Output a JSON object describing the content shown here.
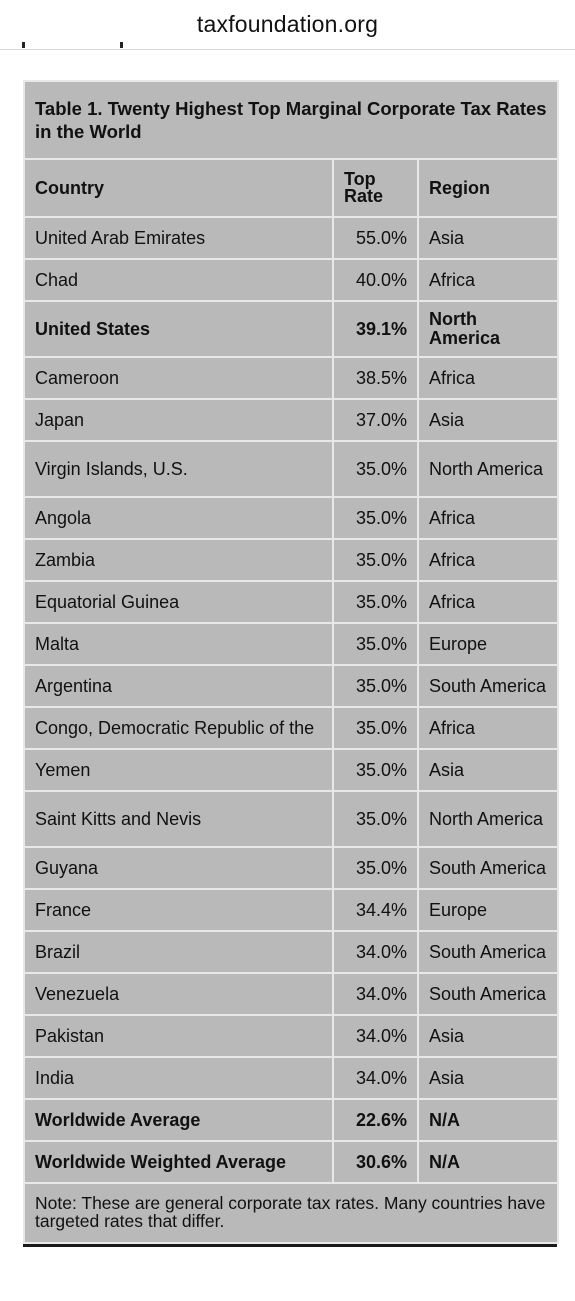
{
  "header": {
    "url": "taxfoundation.org"
  },
  "table": {
    "title": "Table 1. Twenty Highest Top Marginal Corporate Tax Rates in the World",
    "columns": [
      "Country",
      "Top Rate",
      "Region"
    ],
    "rows": [
      {
        "country": "United Arab Emirates",
        "rate": "55.0%",
        "region": "Asia",
        "bold": false
      },
      {
        "country": "Chad",
        "rate": "40.0%",
        "region": "Africa",
        "bold": false
      },
      {
        "country": "United States",
        "rate": "39.1%",
        "region": "North America",
        "bold": true
      },
      {
        "country": "Cameroon",
        "rate": "38.5%",
        "region": "Africa",
        "bold": false
      },
      {
        "country": "Japan",
        "rate": "37.0%",
        "region": "Asia",
        "bold": false
      },
      {
        "country": "Virgin Islands, U.S.",
        "rate": "35.0%",
        "region": "North America",
        "bold": false
      },
      {
        "country": "Angola",
        "rate": "35.0%",
        "region": "Africa",
        "bold": false
      },
      {
        "country": "Zambia",
        "rate": "35.0%",
        "region": "Africa",
        "bold": false
      },
      {
        "country": "Equatorial Guinea",
        "rate": "35.0%",
        "region": "Africa",
        "bold": false
      },
      {
        "country": "Malta",
        "rate": "35.0%",
        "region": "Europe",
        "bold": false
      },
      {
        "country": "Argentina",
        "rate": "35.0%",
        "region": "South America",
        "bold": false
      },
      {
        "country": "Congo, Democratic Republic of the",
        "rate": "35.0%",
        "region": "Africa",
        "bold": false
      },
      {
        "country": "Yemen",
        "rate": "35.0%",
        "region": "Asia",
        "bold": false
      },
      {
        "country": "Saint Kitts and Nevis",
        "rate": "35.0%",
        "region": "North America",
        "bold": false
      },
      {
        "country": "Guyana",
        "rate": "35.0%",
        "region": "South America",
        "bold": false
      },
      {
        "country": "France",
        "rate": "34.4%",
        "region": "Europe",
        "bold": false
      },
      {
        "country": "Brazil",
        "rate": "34.0%",
        "region": "South America",
        "bold": false
      },
      {
        "country": "Venezuela",
        "rate": "34.0%",
        "region": "South America",
        "bold": false
      },
      {
        "country": "Pakistan",
        "rate": "34.0%",
        "region": "Asia",
        "bold": false
      },
      {
        "country": "India",
        "rate": "34.0%",
        "region": "Asia",
        "bold": false
      },
      {
        "country": "Worldwide Average",
        "rate": "22.6%",
        "region": "N/A",
        "bold": true
      },
      {
        "country": "Worldwide Weighted Average",
        "rate": "30.6%",
        "region": "N/A",
        "bold": true
      }
    ],
    "note": "Note: These are general corporate tax rates. Many countries have targeted rates that differ."
  }
}
